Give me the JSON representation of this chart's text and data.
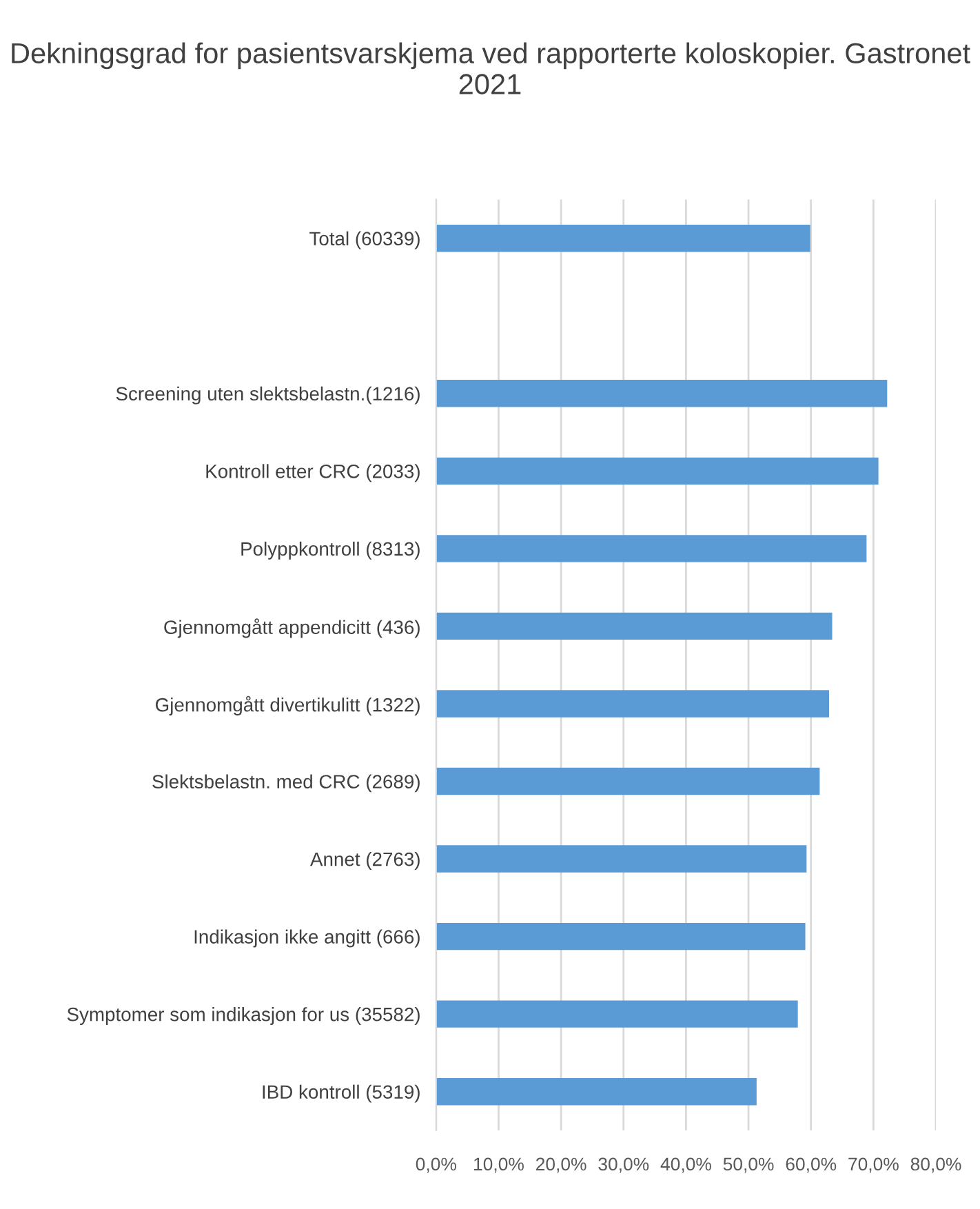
{
  "chart_data": {
    "type": "bar",
    "orientation": "horizontal",
    "title": "Dekningsgrad for pasientsvarskjema ved rapporterte koloskopier. Gastronet 2021",
    "categories": [
      "Total (60339)",
      null,
      "Screening uten slektsbelastn.(1216)",
      "Kontroll etter CRC (2033)",
      "Polyppkontroll (8313)",
      "Gjennomgått appendicitt (436)",
      "Gjennomgått divertikulitt (1322)",
      "Slektsbelastn. med CRC (2689)",
      "Annet (2763)",
      "Indikasjon ikke angitt (666)",
      "Symptomer som indikasjon for us (35582)",
      "IBD kontroll (5319)"
    ],
    "values": [
      59.9,
      null,
      72.2,
      70.8,
      68.9,
      63.4,
      62.9,
      61.4,
      59.3,
      59.1,
      57.9,
      51.3
    ],
    "color": "#5b9bd5",
    "xlim": [
      0,
      80
    ],
    "xticks": [
      {
        "value": 0,
        "label": "0,0%"
      },
      {
        "value": 10,
        "label": "10,0%"
      },
      {
        "value": 20,
        "label": "20,0%"
      },
      {
        "value": 30,
        "label": "30,0%"
      },
      {
        "value": 40,
        "label": "40,0%"
      },
      {
        "value": 50,
        "label": "50,0%"
      },
      {
        "value": 60,
        "label": "60,0%"
      },
      {
        "value": 70,
        "label": "70,0%"
      },
      {
        "value": 80,
        "label": "80,0%"
      }
    ],
    "grid": "x"
  }
}
